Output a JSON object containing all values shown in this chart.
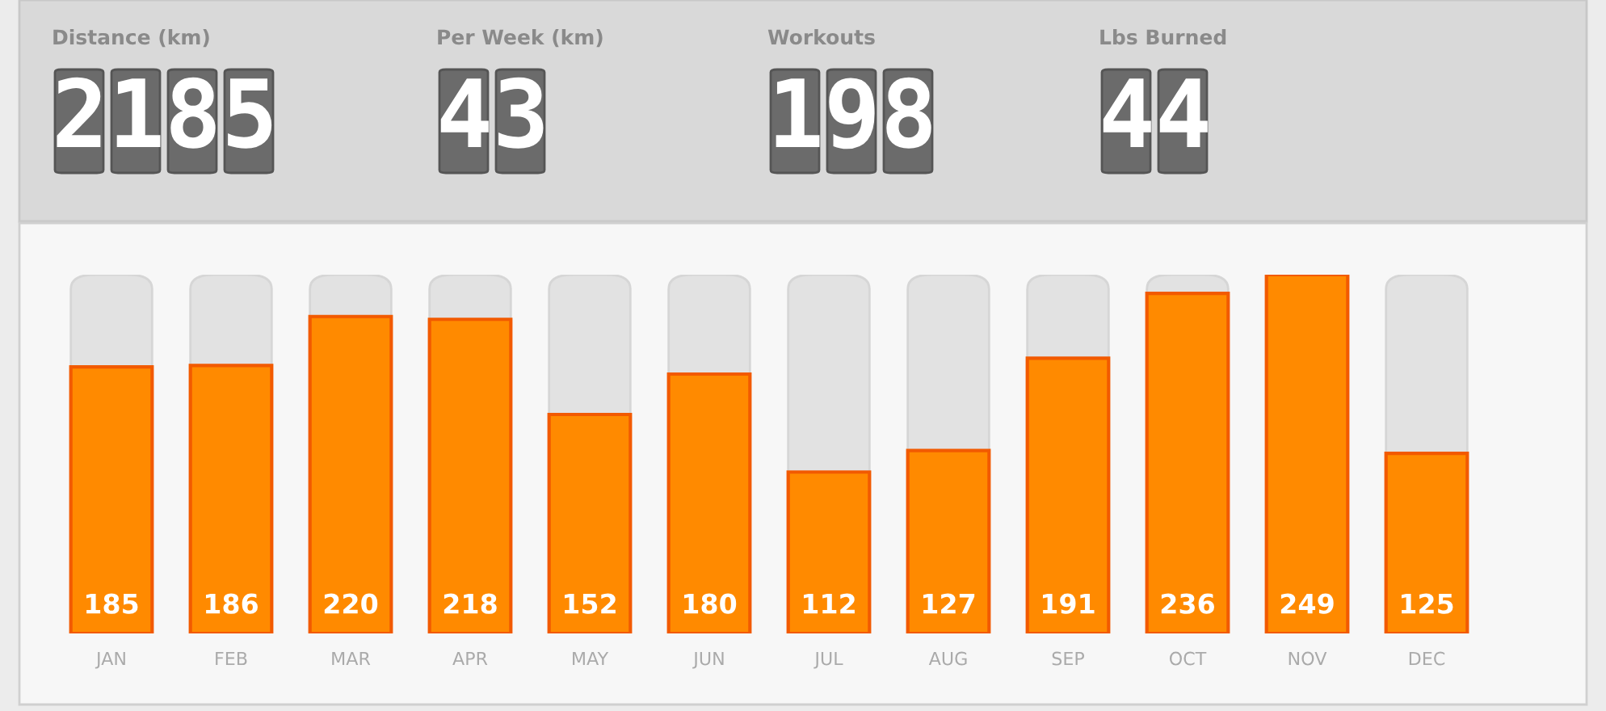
{
  "chart_data": [
    {
      "type": "other",
      "annotations": [
        "Distance (km)",
        "2185",
        "Per Week (km)",
        "43",
        "Workouts",
        "198",
        "Lbs Burned",
        "44"
      ]
    },
    {
      "type": "bar",
      "categories": [
        "JAN",
        "FEB",
        "MAR",
        "APR",
        "MAY",
        "JUN",
        "JUL",
        "AUG",
        "SEP",
        "OCT",
        "NOV",
        "DEC"
      ],
      "values": [
        185,
        186,
        220,
        218,
        152,
        180,
        112,
        127,
        191,
        236,
        249,
        125
      ],
      "color": "#ff8a00",
      "data_labels": true
    }
  ]
}
